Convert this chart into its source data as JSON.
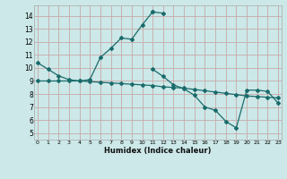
{
  "xlabel": "Humidex (Indice chaleur)",
  "bg_color": "#cce8e8",
  "grid_color": "#c8a8a8",
  "line_color": "#1a6b6b",
  "series": [
    {
      "x": [
        0,
        1,
        2,
        3,
        4,
        5,
        6,
        7,
        8,
        9,
        10,
        11
      ],
      "y": [
        10.4,
        9.9,
        9.4,
        9.1,
        9.0,
        9.1,
        10.8,
        11.5,
        12.3,
        12.2,
        13.3,
        14.3
      ]
    },
    {
      "x": [
        11,
        12
      ],
      "y": [
        14.3,
        14.2
      ]
    },
    {
      "x": [
        0,
        1,
        2,
        3,
        4,
        5,
        6,
        7,
        8,
        9,
        10,
        11,
        12,
        13,
        14,
        15,
        16,
        17,
        18,
        19,
        20,
        21,
        22,
        23
      ],
      "y": [
        9.0,
        9.0,
        9.0,
        9.0,
        9.0,
        8.95,
        8.9,
        8.85,
        8.8,
        8.75,
        8.7,
        8.65,
        8.55,
        8.5,
        8.45,
        8.35,
        8.25,
        8.15,
        8.05,
        7.95,
        7.85,
        7.8,
        7.75,
        7.7
      ]
    },
    {
      "x": [
        11,
        12,
        13,
        14,
        15,
        16,
        17,
        18,
        19,
        20,
        21,
        22,
        23
      ],
      "y": [
        9.9,
        9.35,
        8.7,
        8.4,
        7.9,
        7.0,
        6.75,
        5.9,
        5.4,
        8.3,
        8.3,
        8.2,
        7.3
      ]
    }
  ],
  "xlim": [
    0,
    23
  ],
  "ylim": [
    4.5,
    14.8
  ],
  "yticks": [
    5,
    6,
    7,
    8,
    9,
    10,
    11,
    12,
    13,
    14
  ],
  "xticks": [
    0,
    1,
    2,
    3,
    4,
    5,
    6,
    7,
    8,
    9,
    10,
    11,
    12,
    13,
    14,
    15,
    16,
    17,
    18,
    19,
    20,
    21,
    22,
    23
  ],
  "figsize": [
    3.2,
    2.0
  ],
  "dpi": 100
}
